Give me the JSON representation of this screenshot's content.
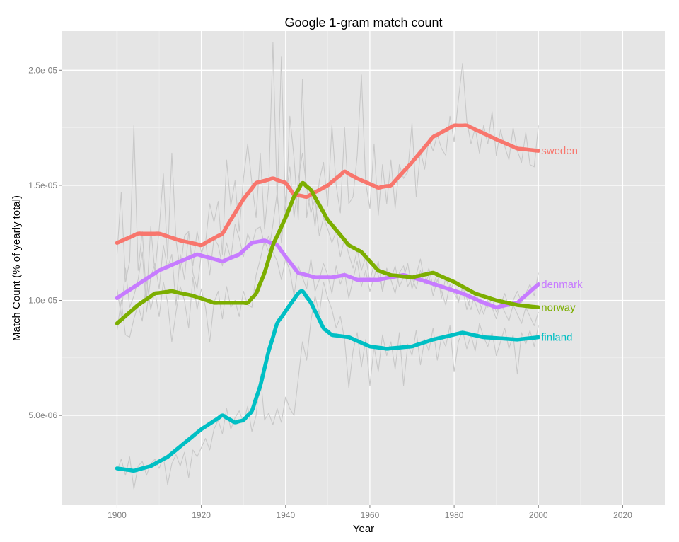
{
  "chart_data": {
    "type": "line",
    "title": "Google 1-gram match count",
    "xlabel": "Year",
    "ylabel": "Match Count (% of yearly total)",
    "xlim": [
      1887,
      2030
    ],
    "ylim": [
      1.1e-06,
      2.17e-05
    ],
    "x_ticks": [
      1900,
      1920,
      1940,
      1960,
      1980,
      2000,
      2020
    ],
    "x_tick_labels": [
      "1900",
      "1920",
      "1940",
      "1960",
      "1980",
      "2000",
      "2020"
    ],
    "y_ticks": [
      5e-06,
      1e-05,
      1.5e-05,
      2e-05
    ],
    "y_tick_labels": [
      "5.0e-06",
      "1.0e-05",
      "1.5e-05",
      "2.0e-05"
    ],
    "grid": true,
    "background": "#e5e5e5",
    "grid_color": "#ffffff",
    "raw_line_color": "#c8c8c8",
    "series": [
      {
        "name": "sweden",
        "color": "#f8766d",
        "x": [
          1900,
          1905,
          1910,
          1915,
          1920,
          1925,
          1930,
          1933,
          1937,
          1940,
          1942,
          1945,
          1950,
          1954,
          1957,
          1962,
          1965,
          1970,
          1975,
          1980,
          1983,
          1990,
          1995,
          2000
        ],
        "smooth": [
          1.25e-05,
          1.29e-05,
          1.29e-05,
          1.26e-05,
          1.24e-05,
          1.29e-05,
          1.44e-05,
          1.51e-05,
          1.53e-05,
          1.51e-05,
          1.46e-05,
          1.45e-05,
          1.5e-05,
          1.56e-05,
          1.53e-05,
          1.49e-05,
          1.5e-05,
          1.6e-05,
          1.71e-05,
          1.76e-05,
          1.76e-05,
          1.7e-05,
          1.66e-05,
          1.65e-05
        ],
        "raw": [
          1.2e-05,
          1.47e-05,
          1.08e-05,
          1.17e-05,
          1.76e-05,
          1.13e-05,
          1.3e-05,
          1e-05,
          1.32e-05,
          1.12e-05,
          1.31e-05,
          1.55e-05,
          1.18e-05,
          1.64e-05,
          1.26e-05,
          1.13e-05,
          1.28e-05,
          1.3e-05,
          1.15e-05,
          1.3e-05,
          1.21e-05,
          1.25e-05,
          1.42e-05,
          1.34e-05,
          1.43e-05,
          1.2e-05,
          1.61e-05,
          1.41e-05,
          1.52e-05,
          1.3e-05,
          1.53e-05,
          1.68e-05,
          1.51e-05,
          1.36e-05,
          1.64e-05,
          1.31e-05,
          1.5e-05,
          2.12e-05,
          1.42e-05,
          2.06e-05,
          1.35e-05,
          1.8e-05,
          1.62e-05,
          1.35e-05,
          1.96e-05,
          1.36e-05,
          1.48e-05,
          1.32e-05,
          1.52e-05,
          1.6e-05,
          1.41e-05,
          1.76e-05,
          1.5e-05,
          1.38e-05,
          1.75e-05,
          1.42e-05,
          1.45e-05,
          1.63e-05,
          1.98e-05,
          1.51e-05,
          1.4e-05,
          1.68e-05,
          1.37e-05,
          1.59e-05,
          1.42e-05,
          1.61e-05,
          1.4e-05,
          1.59e-05,
          1.53e-05,
          1.56e-05,
          1.77e-05,
          1.45e-05,
          1.65e-05,
          1.57e-05,
          1.7e-05,
          1.65e-05,
          1.72e-05,
          1.66e-05,
          1.63e-05,
          1.8e-05,
          1.69e-05,
          1.87e-05,
          2.03e-05,
          1.78e-05,
          1.68e-05,
          1.75e-05,
          1.64e-05,
          1.76e-05,
          1.68e-05,
          1.82e-05,
          1.63e-05,
          1.74e-05,
          1.67e-05,
          1.61e-05,
          1.75e-05,
          1.65e-05,
          1.6e-05,
          1.73e-05,
          1.59e-05,
          1.58e-05,
          1.76e-05
        ]
      },
      {
        "name": "denmark",
        "color": "#c77cff",
        "x": [
          1900,
          1905,
          1910,
          1915,
          1919,
          1925,
          1929,
          1932,
          1935,
          1938,
          1940,
          1943,
          1947,
          1951,
          1954,
          1957,
          1962,
          1968,
          1972,
          1977,
          1982,
          1987,
          1990,
          1995,
          2000
        ],
        "smooth": [
          1.01e-05,
          1.07e-05,
          1.13e-05,
          1.17e-05,
          1.2e-05,
          1.17e-05,
          1.2e-05,
          1.25e-05,
          1.26e-05,
          1.24e-05,
          1.19e-05,
          1.12e-05,
          1.1e-05,
          1.1e-05,
          1.11e-05,
          1.09e-05,
          1.09e-05,
          1.11e-05,
          1.09e-05,
          1.06e-05,
          1.03e-05,
          9.9e-06,
          9.7e-06,
          9.9e-06,
          1.07e-05
        ],
        "raw": [
          1.05e-05,
          9.3e-06,
          1.14e-05,
          9.7e-06,
          1.02e-05,
          1.09e-05,
          1.21e-05,
          9.5e-06,
          1.1e-05,
          1.16e-05,
          1.05e-05,
          1.24e-05,
          1.14e-05,
          1.2e-05,
          9.8e-06,
          1.2e-05,
          1.09e-05,
          1.3e-05,
          1.12e-05,
          1.05e-05,
          1.2e-05,
          1.26e-05,
          1.11e-05,
          1.27e-05,
          1.24e-05,
          1.15e-05,
          1.25e-05,
          1.18e-05,
          1.33e-05,
          1.27e-05,
          1.19e-05,
          1.29e-05,
          1.24e-05,
          1.31e-05,
          1.32e-05,
          1.24e-05,
          1.28e-05,
          1.21e-05,
          1.17e-05,
          1.09e-05,
          1.18e-05,
          1.13e-05,
          1.02e-05,
          1.15e-05,
          1.1e-05,
          1.05e-05,
          1.18e-05,
          1.04e-05,
          1.09e-05,
          1.16e-05,
          1.11e-05,
          1.03e-05,
          1.15e-05,
          1.07e-05,
          1.12e-05,
          1.01e-05,
          1.09e-05,
          1.17e-05,
          1.06e-05,
          1.13e-05,
          1.04e-05,
          1.1e-05,
          1.17e-05,
          1.04e-05,
          1.14e-05,
          1.09e-05,
          1.03e-05,
          1.12e-05,
          1.15e-05,
          1.06e-05,
          1.1e-05,
          1.05e-05,
          1.13e-05,
          1.07e-05,
          1.11e-05,
          1.02e-05,
          1.09e-05,
          1.04e-05,
          9.8e-06,
          1.07e-05,
          1.03e-05,
          1e-05,
          1.05e-05,
          9.6e-06,
          1.02e-05,
          9.9e-06,
          9.4e-06,
          1e-05,
          9.7e-06,
          1.01e-05,
          9.5e-06,
          9.8e-06,
          1.03e-05,
          9.7e-06,
          1e-05,
          1.04e-05,
          9.9e-06,
          1.03e-05,
          1.07e-05,
          1.02e-05,
          1.12e-05
        ]
      },
      {
        "name": "norway",
        "color": "#7cae00",
        "x": [
          1900,
          1905,
          1909,
          1913,
          1918,
          1923,
          1928,
          1931,
          1933,
          1935,
          1937,
          1940,
          1942,
          1944,
          1946,
          1950,
          1955,
          1958,
          1962,
          1965,
          1970,
          1975,
          1980,
          1985,
          1990,
          1995,
          2000
        ],
        "smooth": [
          9e-06,
          9.8e-06,
          1.03e-05,
          1.04e-05,
          1.02e-05,
          9.9e-06,
          9.9e-06,
          9.9e-06,
          1.03e-05,
          1.12e-05,
          1.24e-05,
          1.36e-05,
          1.45e-05,
          1.51e-05,
          1.48e-05,
          1.35e-05,
          1.24e-05,
          1.21e-05,
          1.13e-05,
          1.11e-05,
          1.1e-05,
          1.12e-05,
          1.08e-05,
          1.03e-05,
          1e-05,
          9.8e-06,
          9.7e-06
        ],
        "raw": [
          8.7e-06,
          1e-05,
          8.5e-06,
          8.4e-06,
          9.2e-06,
          9.8e-06,
          9.1e-06,
          1.09e-05,
          9.6e-06,
          1.04e-05,
          9.3e-06,
          1.08e-05,
          9.9e-06,
          8.2e-06,
          9.5e-06,
          1.06e-05,
          1e-05,
          8.8e-06,
          1.1e-05,
          9.6e-06,
          1.05e-05,
          9.7e-06,
          8.2e-06,
          9.9e-06,
          1.04e-05,
          9.2e-06,
          1.06e-05,
          9.7e-06,
          1e-05,
          9.3e-06,
          1.04e-05,
          9.8e-06,
          9.7e-06,
          1.11e-05,
          1.18e-05,
          1.26e-05,
          1.21e-05,
          1.33e-05,
          1.47e-05,
          1.25e-05,
          1.44e-05,
          1.58e-05,
          1.36e-05,
          1.52e-05,
          1.64e-05,
          1.49e-05,
          1.38e-05,
          1.44e-05,
          1.28e-05,
          1.36e-05,
          1.31e-05,
          1.25e-05,
          1.3e-05,
          1.19e-05,
          1.27e-05,
          1.2e-05,
          1.14e-05,
          1.22e-05,
          1.13e-05,
          1.19e-05,
          1.08e-05,
          1.16e-05,
          1.11e-05,
          1.04e-05,
          1.13e-05,
          1.09e-05,
          1.15e-05,
          1.06e-05,
          1.1e-05,
          1.16e-05,
          1.05e-05,
          1.11e-05,
          1.18e-05,
          1.08e-05,
          1.14e-05,
          1.06e-05,
          1.12e-05,
          1.01e-05,
          1.1e-05,
          1.04e-05,
          1.08e-05,
          9.9e-06,
          1.06e-05,
          1.01e-05,
          9.6e-06,
          1.04e-05,
          9.9e-06,
          9.4e-06,
          1e-05,
          9.7e-06,
          9.2e-06,
          9.9e-06,
          9.5e-06,
          9.1e-06,
          9.8e-06,
          9.4e-06,
          9e-06,
          9.7e-06,
          9.3e-06,
          8.9e-06,
          9.5e-06
        ]
      },
      {
        "name": "finland",
        "color": "#00bfc4",
        "x": [
          1900,
          1904,
          1908,
          1912,
          1916,
          1920,
          1925,
          1928,
          1930,
          1932,
          1934,
          1936,
          1938,
          1941,
          1943,
          1944,
          1946,
          1949,
          1951,
          1955,
          1960,
          1964,
          1970,
          1975,
          1982,
          1987,
          1995,
          2000
        ],
        "smooth": [
          2.7e-06,
          2.6e-06,
          2.8e-06,
          3.2e-06,
          3.8e-06,
          4.4e-06,
          5e-06,
          4.7e-06,
          4.8e-06,
          5.2e-06,
          6.3e-06,
          7.8e-06,
          9e-06,
          9.8e-06,
          1.03e-05,
          1.04e-05,
          9.9e-06,
          8.8e-06,
          8.5e-06,
          8.4e-06,
          8e-06,
          7.9e-06,
          8e-06,
          8.3e-06,
          8.6e-06,
          8.4e-06,
          8.3e-06,
          8.4e-06
        ],
        "raw": [
          2.6e-06,
          3.1e-06,
          2.4e-06,
          3.2e-06,
          1.8e-06,
          2.8e-06,
          3e-06,
          2.4e-06,
          2.9e-06,
          3.1e-06,
          2.7e-06,
          3.2e-06,
          2e-06,
          2.9e-06,
          3.3e-06,
          2.8e-06,
          3.4e-06,
          2.3e-06,
          3.5e-06,
          3.2e-06,
          3.6e-06,
          4e-06,
          3.5e-06,
          4.4e-06,
          4.8e-06,
          4.2e-06,
          5.3e-06,
          4.4e-06,
          4.9e-06,
          5.2e-06,
          4.7e-06,
          5.4e-06,
          4.3e-06,
          5e-06,
          6.8e-06,
          4.8e-06,
          5.1e-06,
          4.6e-06,
          5.3e-06,
          4.7e-06,
          5.8e-06,
          5.3e-06,
          5e-06,
          6.6e-06,
          8.2e-06,
          7.4e-06,
          9.1e-06,
          1.02e-05,
          9.4e-06,
          1.08e-05,
          1.01e-05,
          9.6e-06,
          8.8e-06,
          9.3e-06,
          8.3e-06,
          6.2e-06,
          7.8e-06,
          8.6e-06,
          7.1e-06,
          8.3e-06,
          6.3e-06,
          8e-06,
          6.9e-06,
          8.5e-06,
          7.6e-06,
          8.2e-06,
          7e-06,
          8.6e-06,
          6.3e-06,
          8.1e-06,
          7.6e-06,
          8.7e-06,
          7.2e-06,
          8.3e-06,
          7.8e-06,
          8.8e-06,
          7.4e-06,
          8.4e-06,
          8e-06,
          8.9e-06,
          6.9e-06,
          8.2e-06,
          8.7e-06,
          7.9e-06,
          8.5e-06,
          7.8e-06,
          9e-06,
          8.4e-06,
          8e-06,
          8.6e-06,
          7.6e-06,
          8.2e-06,
          8.8e-06,
          7.9e-06,
          8.5e-06,
          6.8e-06,
          8.6e-06,
          8.1e-06,
          8.7e-06,
          8e-06,
          8.9e-06
        ]
      }
    ]
  }
}
